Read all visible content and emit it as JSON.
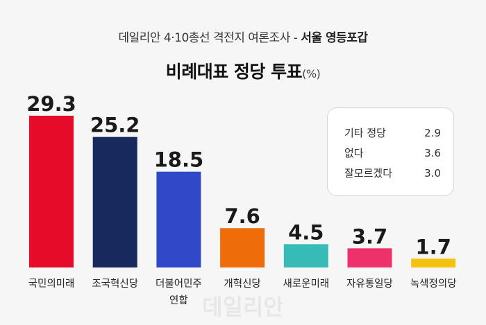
{
  "header": {
    "subtitle_main": "데일리안 4·10총선 격전지 여론조사 - ",
    "subtitle_region": "서울 영등포갑",
    "title_main": "비례대표 정당 투표",
    "title_unit": "(%)"
  },
  "others": [
    {
      "label": "기타 정당",
      "value": "2.9"
    },
    {
      "label": "없다",
      "value": "3.6"
    },
    {
      "label": "잘모르겠다",
      "value": "3.0"
    }
  ],
  "watermark": "데일리안",
  "chart_data": {
    "type": "bar",
    "categories": [
      "국민의미래",
      "조국혁신당",
      "더불어민주\n연합",
      "개혁신당",
      "새로운미래",
      "자유통일당",
      "녹색정의당"
    ],
    "values": [
      29.3,
      25.2,
      18.5,
      7.6,
      4.5,
      3.7,
      1.7
    ],
    "value_labels": [
      "29.3",
      "25.2",
      "18.5",
      "7.6",
      "4.5",
      "3.7",
      "1.7"
    ],
    "colors": [
      "#e60b27",
      "#172a5e",
      "#2f49c7",
      "#ee6d0a",
      "#37bbb7",
      "#ef316b",
      "#f3c10f"
    ],
    "title": "비례대표 정당 투표",
    "ylim": [
      0,
      29.3
    ]
  }
}
